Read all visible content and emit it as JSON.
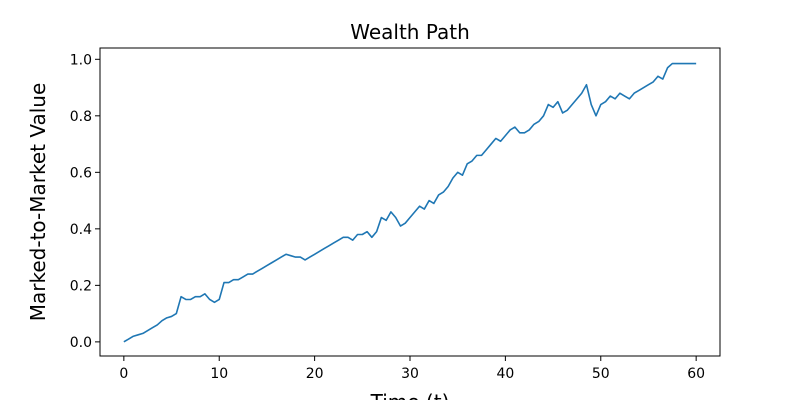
{
  "chart_data": {
    "type": "line",
    "title": "Wealth Path",
    "xlabel": "Time (t)",
    "ylabel": "Marked-to-Market Value",
    "xlim": [
      -2.5,
      62.5
    ],
    "ylim": [
      -0.05,
      1.04
    ],
    "xticks": [
      0,
      10,
      20,
      30,
      40,
      50,
      60
    ],
    "yticks": [
      0.0,
      0.2,
      0.4,
      0.6,
      0.8,
      1.0
    ],
    "xtick_labels": [
      "0",
      "10",
      "20",
      "30",
      "40",
      "50",
      "60"
    ],
    "ytick_labels": [
      "0.0",
      "0.2",
      "0.4",
      "0.6",
      "0.8",
      "1.0"
    ],
    "grid": false,
    "line_color": "#1f77b4",
    "series": [
      {
        "x": [
          0,
          0.5,
          1,
          1.5,
          2,
          2.5,
          3,
          3.5,
          4,
          4.5,
          5,
          5.5,
          6,
          6.5,
          7,
          7.5,
          8,
          8.5,
          9,
          9.5,
          10,
          10.5,
          11,
          11.5,
          12,
          12.5,
          13,
          13.5,
          14,
          14.5,
          15,
          15.5,
          16,
          16.5,
          17,
          17.5,
          18,
          18.5,
          19,
          19.5,
          20,
          20.5,
          21,
          21.5,
          22,
          22.5,
          23,
          23.5,
          24,
          24.5,
          25,
          25.5,
          26,
          26.5,
          27,
          27.5,
          28,
          28.5,
          29,
          29.5,
          30,
          30.5,
          31,
          31.5,
          32,
          32.5,
          33,
          33.5,
          34,
          34.5,
          35,
          35.5,
          36,
          36.5,
          37,
          37.5,
          38,
          38.5,
          39,
          39.5,
          40,
          40.5,
          41,
          41.5,
          42,
          42.5,
          43,
          43.5,
          44,
          44.5,
          45,
          45.5,
          46,
          46.5,
          47,
          47.5,
          48,
          48.5,
          49,
          49.5,
          50,
          50.5,
          51,
          51.5,
          52,
          52.5,
          53,
          53.5,
          54,
          54.5,
          55,
          55.5,
          56,
          56.5,
          57,
          57.5,
          58,
          58.5,
          59,
          59.5,
          60
        ],
        "values": [
          0.0,
          0.01,
          0.02,
          0.025,
          0.03,
          0.04,
          0.05,
          0.06,
          0.075,
          0.085,
          0.09,
          0.1,
          0.16,
          0.15,
          0.15,
          0.16,
          0.16,
          0.17,
          0.15,
          0.14,
          0.15,
          0.21,
          0.21,
          0.22,
          0.22,
          0.23,
          0.24,
          0.24,
          0.25,
          0.26,
          0.27,
          0.28,
          0.29,
          0.3,
          0.31,
          0.305,
          0.3,
          0.3,
          0.29,
          0.3,
          0.31,
          0.32,
          0.33,
          0.34,
          0.35,
          0.36,
          0.37,
          0.37,
          0.36,
          0.38,
          0.38,
          0.39,
          0.37,
          0.39,
          0.44,
          0.43,
          0.46,
          0.44,
          0.41,
          0.42,
          0.44,
          0.46,
          0.48,
          0.47,
          0.5,
          0.49,
          0.52,
          0.53,
          0.55,
          0.58,
          0.6,
          0.59,
          0.63,
          0.64,
          0.66,
          0.66,
          0.68,
          0.7,
          0.72,
          0.71,
          0.73,
          0.75,
          0.76,
          0.74,
          0.74,
          0.75,
          0.77,
          0.78,
          0.8,
          0.84,
          0.83,
          0.85,
          0.81,
          0.82,
          0.84,
          0.86,
          0.88,
          0.91,
          0.84,
          0.8,
          0.84,
          0.85,
          0.87,
          0.86,
          0.88,
          0.87,
          0.86,
          0.88,
          0.89,
          0.9,
          0.91,
          0.92,
          0.94,
          0.93,
          0.97,
          0.985,
          0.985,
          0.985,
          0.985,
          0.985,
          0.985
        ]
      }
    ]
  }
}
